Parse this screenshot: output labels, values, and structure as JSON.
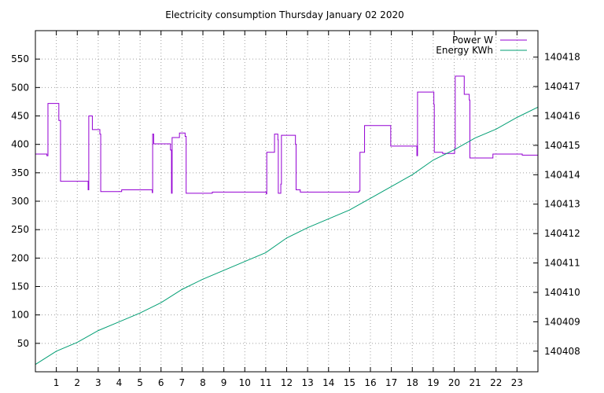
{
  "chart_data": {
    "type": "line",
    "title": "Electricity consumption Thursday January 02 2020",
    "xlim": [
      0,
      24
    ],
    "x_ticks": [
      1,
      2,
      3,
      4,
      5,
      6,
      7,
      8,
      9,
      10,
      11,
      12,
      13,
      14,
      15,
      16,
      17,
      18,
      19,
      20,
      21,
      22,
      23
    ],
    "y_left": {
      "lim": [
        0,
        600
      ],
      "ticks": [
        50,
        100,
        150,
        200,
        250,
        300,
        350,
        400,
        450,
        500,
        550
      ]
    },
    "y_right": {
      "lim": [
        140407.3,
        140418.9
      ],
      "ticks": [
        140408,
        140409,
        140410,
        140411,
        140412,
        140413,
        140414,
        140415,
        140416,
        140417,
        140418
      ]
    },
    "grid": true,
    "legend_position": "top-right",
    "series": [
      {
        "name": "Power W",
        "axis": "left",
        "color": "#9400d3",
        "step": true,
        "points": [
          [
            0,
            383
          ],
          [
            0.55,
            380
          ],
          [
            0.6,
            472
          ],
          [
            1.1,
            472
          ],
          [
            1.12,
            442
          ],
          [
            1.2,
            335
          ],
          [
            2.5,
            335
          ],
          [
            2.52,
            320
          ],
          [
            2.55,
            450
          ],
          [
            2.7,
            450
          ],
          [
            2.72,
            426
          ],
          [
            3.05,
            426
          ],
          [
            3.08,
            418
          ],
          [
            3.12,
            317
          ],
          [
            4.1,
            317
          ],
          [
            4.12,
            320
          ],
          [
            5.55,
            320
          ],
          [
            5.58,
            315
          ],
          [
            5.6,
            418
          ],
          [
            5.65,
            401
          ],
          [
            6.4,
            401
          ],
          [
            6.45,
            390
          ],
          [
            6.5,
            314
          ],
          [
            6.53,
            412
          ],
          [
            6.85,
            412
          ],
          [
            6.88,
            420
          ],
          [
            7.1,
            420
          ],
          [
            7.15,
            414
          ],
          [
            7.2,
            314
          ],
          [
            8.4,
            314
          ],
          [
            8.45,
            316
          ],
          [
            11.0,
            316
          ],
          [
            11.03,
            313
          ],
          [
            11.05,
            386
          ],
          [
            11.4,
            386
          ],
          [
            11.42,
            418
          ],
          [
            11.55,
            418
          ],
          [
            11.58,
            408
          ],
          [
            11.6,
            314
          ],
          [
            11.7,
            314
          ],
          [
            11.72,
            330
          ],
          [
            11.75,
            416
          ],
          [
            12.4,
            416
          ],
          [
            12.42,
            400
          ],
          [
            12.45,
            320
          ],
          [
            12.6,
            320
          ],
          [
            12.65,
            316
          ],
          [
            15.4,
            316
          ],
          [
            15.45,
            318
          ],
          [
            15.5,
            386
          ],
          [
            15.7,
            386
          ],
          [
            15.72,
            433
          ],
          [
            16.95,
            433
          ],
          [
            16.97,
            397
          ],
          [
            18.2,
            397
          ],
          [
            18.22,
            380
          ],
          [
            18.25,
            492
          ],
          [
            19.0,
            492
          ],
          [
            19.03,
            470
          ],
          [
            19.05,
            386
          ],
          [
            19.4,
            386
          ],
          [
            19.45,
            384
          ],
          [
            20.0,
            384
          ],
          [
            20.02,
            392
          ],
          [
            20.05,
            520
          ],
          [
            20.45,
            520
          ],
          [
            20.48,
            488
          ],
          [
            20.7,
            488
          ],
          [
            20.72,
            478
          ],
          [
            20.75,
            376
          ],
          [
            21.8,
            376
          ],
          [
            21.85,
            383
          ],
          [
            23.2,
            383
          ],
          [
            23.25,
            381
          ],
          [
            24,
            381
          ]
        ]
      },
      {
        "name": "Energy KWh",
        "axis": "right",
        "color": "#009e73",
        "step": false,
        "points": [
          [
            0,
            140407.55
          ],
          [
            1,
            140408.0
          ],
          [
            2,
            140408.3
          ],
          [
            3,
            140408.7
          ],
          [
            4,
            140409.0
          ],
          [
            5,
            140409.3
          ],
          [
            6,
            140409.65
          ],
          [
            7,
            140410.1
          ],
          [
            8,
            140410.45
          ],
          [
            9,
            140410.75
          ],
          [
            10,
            140411.05
          ],
          [
            11,
            140411.35
          ],
          [
            12,
            140411.85
          ],
          [
            13,
            140412.2
          ],
          [
            14,
            140412.5
          ],
          [
            15,
            140412.8
          ],
          [
            16,
            140413.2
          ],
          [
            17,
            140413.6
          ],
          [
            18,
            140414.0
          ],
          [
            19,
            140414.5
          ],
          [
            20,
            140414.85
          ],
          [
            21,
            140415.25
          ],
          [
            22,
            140415.55
          ],
          [
            23,
            140415.95
          ],
          [
            24,
            140416.3
          ]
        ]
      }
    ]
  }
}
